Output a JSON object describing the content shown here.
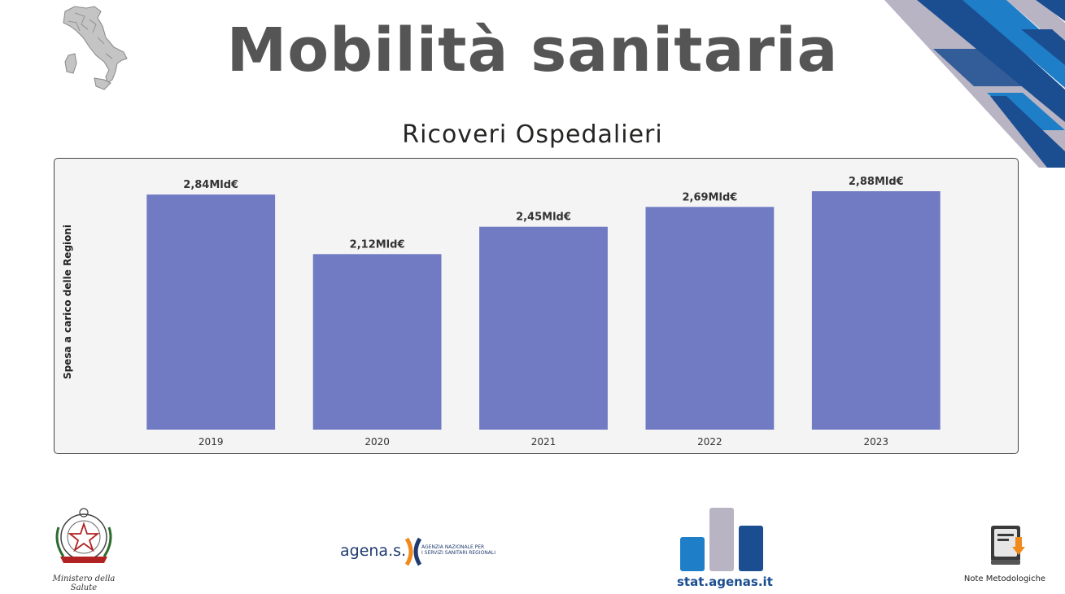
{
  "header": {
    "title": "Mobilità sanitaria",
    "map_icon": "italy-map-icon"
  },
  "chart_data": {
    "type": "bar",
    "title": "Ricoveri Ospedalieri",
    "ylabel": "Spesa a carico delle Regioni",
    "xlabel": "",
    "categories": [
      "2019",
      "2020",
      "2021",
      "2022",
      "2023"
    ],
    "values": [
      2.84,
      2.12,
      2.45,
      2.69,
      2.88
    ],
    "data_labels": [
      "2,84Mld€",
      "2,12Mld€",
      "2,45Mld€",
      "2,69Mld€",
      "2,88Mld€"
    ],
    "unit": "Mld€",
    "ylim": [
      0,
      2.88
    ],
    "grid": false,
    "bar_color": "#717bc4"
  },
  "footer": {
    "ministero_text": "Ministero della Salute",
    "agenas_word": "agena.s.",
    "agenas_sub_1": "AGENZIA NAZIONALE PER",
    "agenas_sub_2": "I SERVIZI SANITARI REGIONALI",
    "stat_text": "stat.agenas.it",
    "note_label": "Note Metodologiche"
  },
  "colors": {
    "title": "#555555",
    "accent_dark": "#1b4e91",
    "accent_light": "#1e7fc8",
    "accent_grey": "#b8b4c4",
    "agenas_orange": "#f08a1c"
  }
}
